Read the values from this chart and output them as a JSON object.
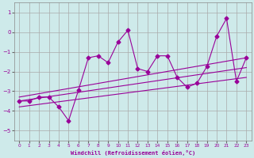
{
  "xlabel": "Windchill (Refroidissement éolien,°C)",
  "bg_color": "#ceeaea",
  "grid_color": "#aaaaaa",
  "line_color": "#990099",
  "x_data": [
    0,
    1,
    2,
    3,
    4,
    5,
    6,
    7,
    8,
    9,
    10,
    11,
    12,
    13,
    14,
    15,
    16,
    17,
    18,
    19,
    20,
    21,
    22,
    23
  ],
  "y_main": [
    -3.5,
    -3.5,
    -3.3,
    -3.3,
    -3.8,
    -4.5,
    -2.95,
    -1.3,
    -1.2,
    -1.55,
    -0.5,
    0.1,
    -1.85,
    -2.0,
    -1.2,
    -1.2,
    -2.3,
    -2.8,
    -2.6,
    -1.75,
    -0.2,
    0.7,
    -2.5,
    -1.3
  ],
  "trend_lines": [
    {
      "x0": 0,
      "y0": -3.3,
      "x1": 23,
      "y1": -1.3
    },
    {
      "x0": 0,
      "y0": -3.5,
      "x1": 23,
      "y1": -1.8
    },
    {
      "x0": 0,
      "y0": -3.8,
      "x1": 23,
      "y1": -2.3
    }
  ],
  "ylim": [
    -5.5,
    1.5
  ],
  "xlim": [
    -0.5,
    23.5
  ],
  "yticks": [
    -5,
    -4,
    -3,
    -2,
    -1,
    0,
    1
  ],
  "xticks": [
    0,
    1,
    2,
    3,
    4,
    5,
    6,
    7,
    8,
    9,
    10,
    11,
    12,
    13,
    14,
    15,
    16,
    17,
    18,
    19,
    20,
    21,
    22,
    23
  ]
}
